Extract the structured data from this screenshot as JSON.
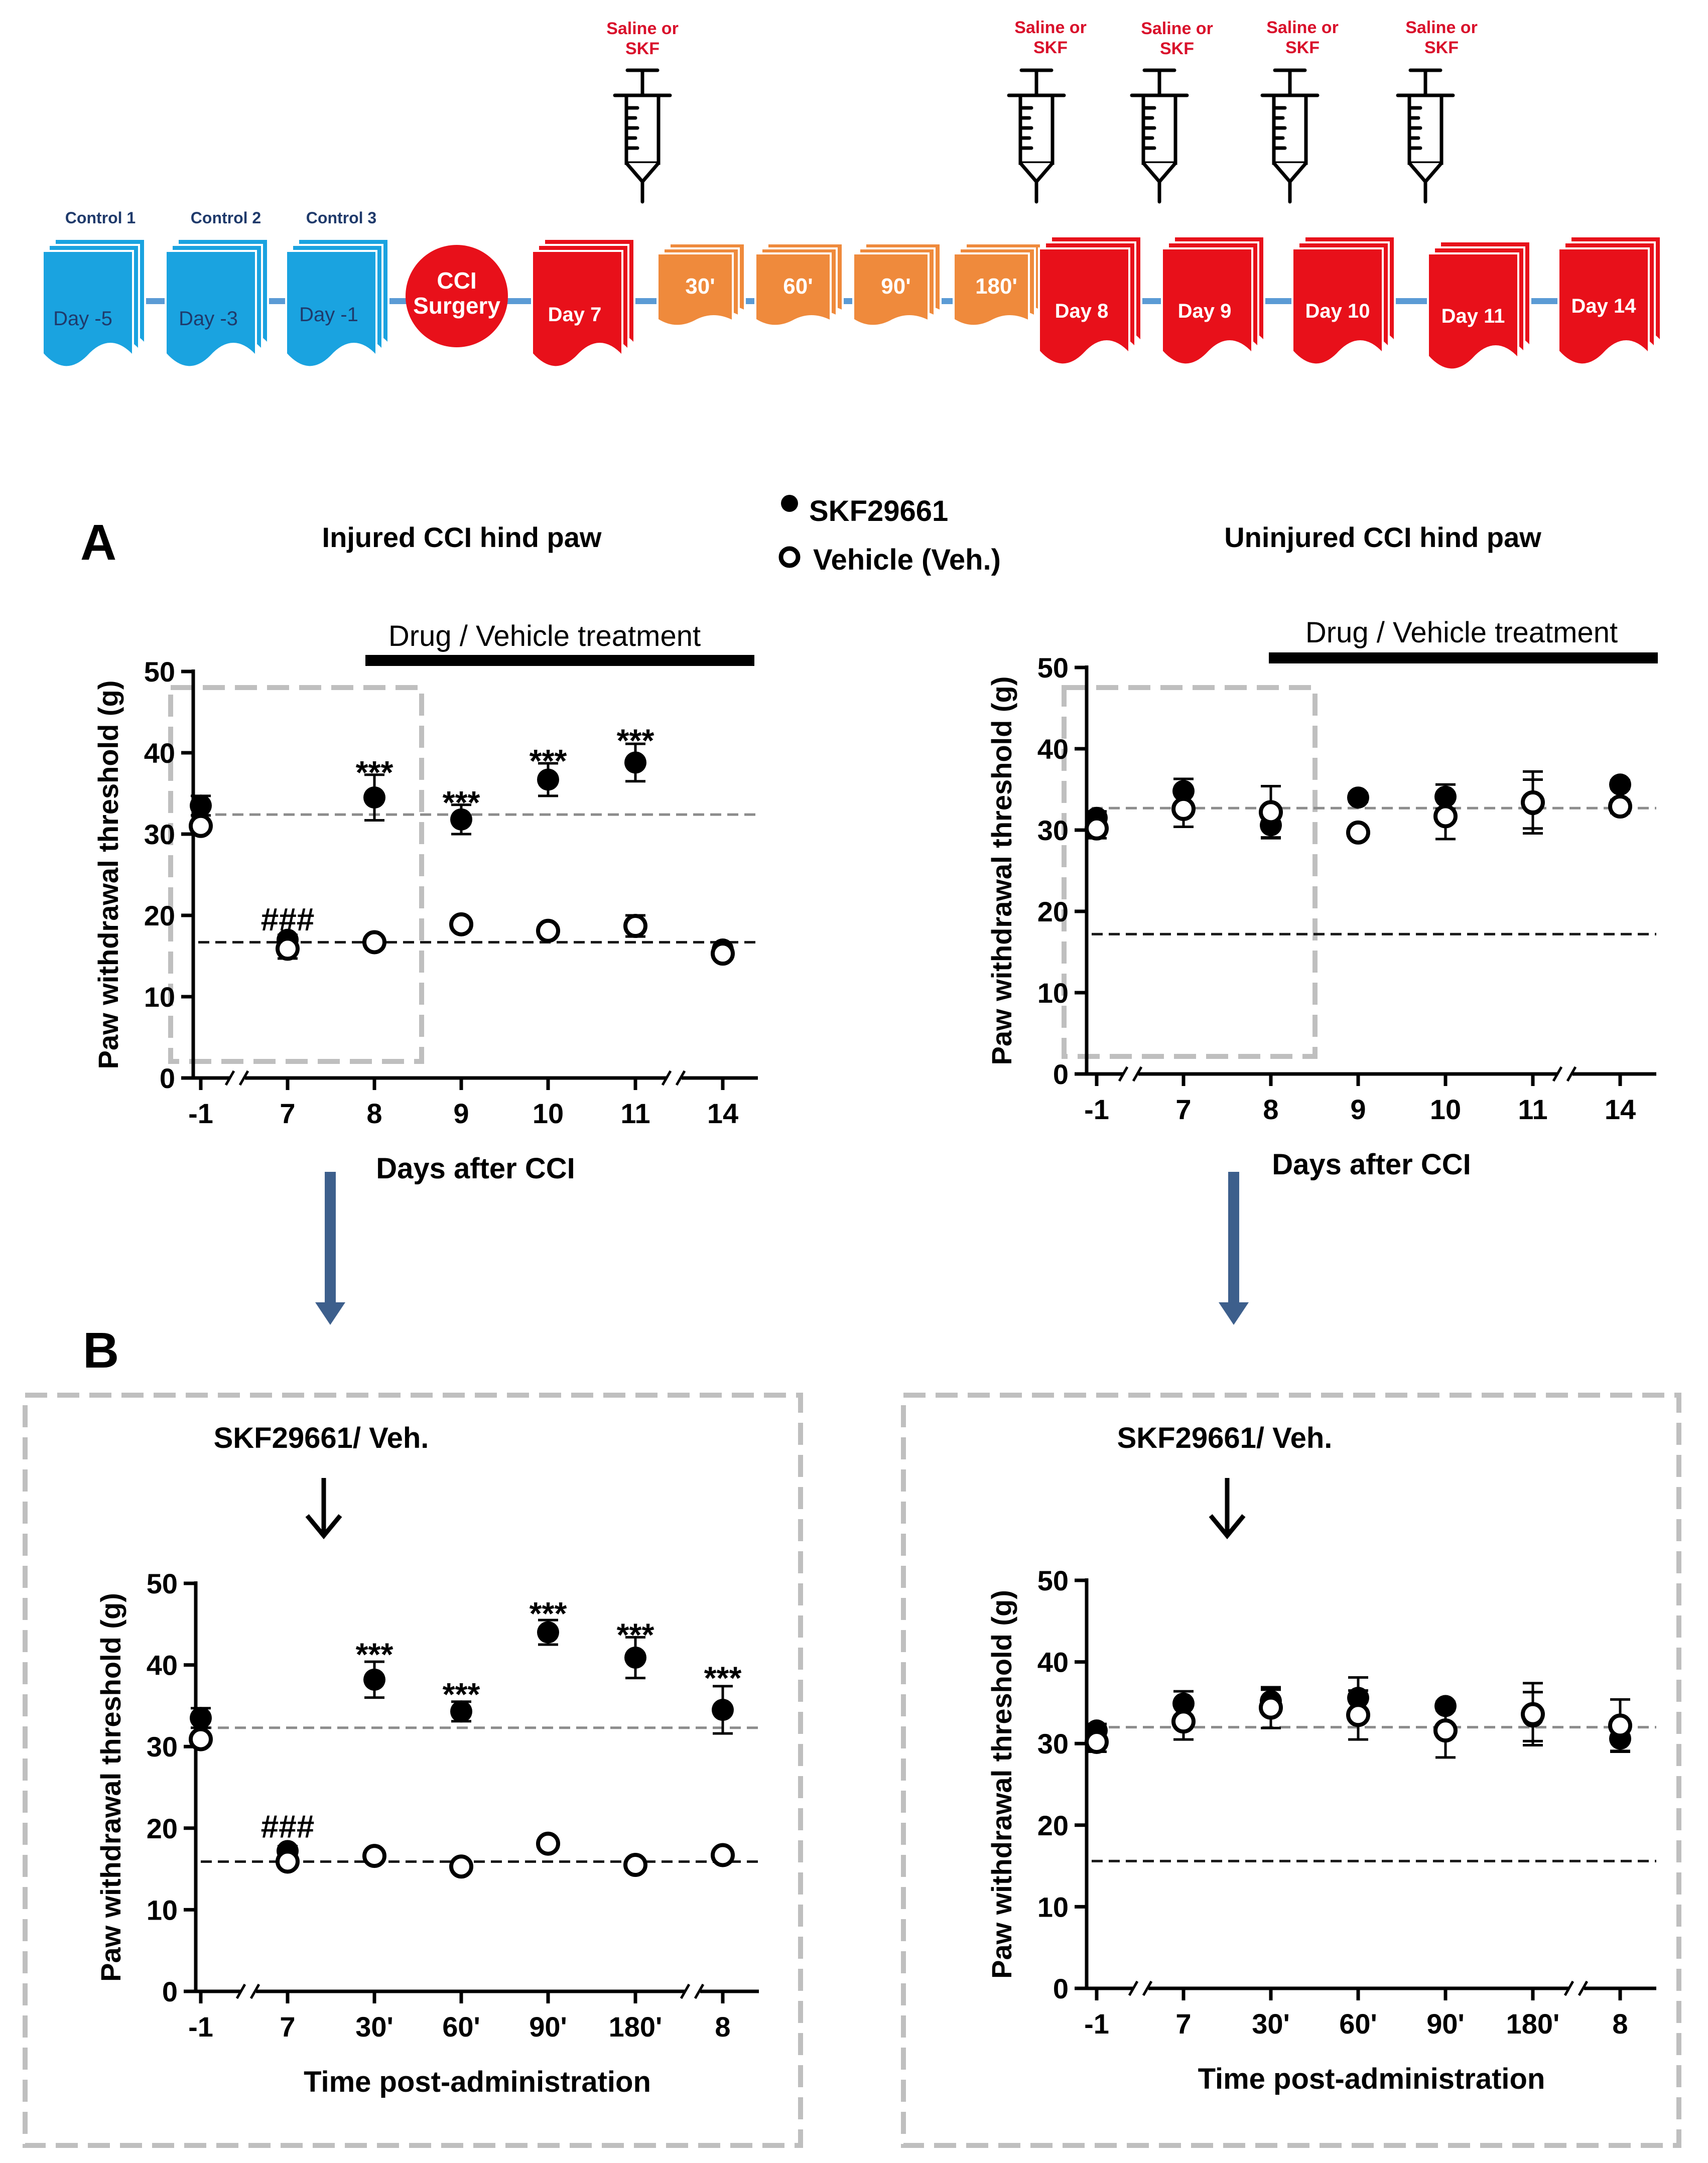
{
  "timeline": {
    "controls": [
      {
        "label": "Control 1",
        "day": "Day -5"
      },
      {
        "label": "Control 2",
        "day": "Day -3"
      },
      {
        "label": "Control 3",
        "day": "Day -1"
      }
    ],
    "surgery": [
      "CCI",
      "Surgery"
    ],
    "day7": "Day 7",
    "timepoints": [
      "30'",
      "60'",
      "90'",
      "180'"
    ],
    "later_days": [
      "Day 8",
      "Day 9",
      "Day 10",
      "Day 11",
      "Day 14"
    ],
    "injection_label": [
      "Saline or",
      "SKF"
    ],
    "colors": {
      "control": "#1aa3e0",
      "surgery": "#e8101a",
      "day": "#e8101a",
      "timepoint": "#ef8a3c",
      "line": "#5b9bd5",
      "injection_text": "#d9102b"
    }
  },
  "legend": {
    "filled": "SKF29661",
    "open": "Vehicle (Veh.)"
  },
  "panel_labels": {
    "a": "A",
    "b": "B"
  },
  "titles": {
    "injured": "Injured CCI hind paw",
    "uninjured": "Uninjured CCI hind paw"
  },
  "treatment_label": "Drug / Vehicle treatment",
  "inset_label": "SKF29661/ Veh.",
  "colors": {
    "arrow": "#3d5f8c",
    "frame": "#bfbfbf",
    "ref_gray": "#8c8c8c",
    "ref_black": "#1a1a1a"
  },
  "chart_data": [
    {
      "id": "A-injured",
      "type": "scatter",
      "title": "Injured CCI hind paw",
      "xlabel": "Days after CCI",
      "ylabel": "Paw withdrawal threshold (g)",
      "ylim": [
        0,
        50
      ],
      "yticks": [
        0,
        10,
        20,
        30,
        40,
        50
      ],
      "categories": [
        "-1",
        "7",
        "8",
        "9",
        "10",
        "11",
        "14"
      ],
      "series": [
        {
          "name": "SKF29661",
          "values": [
            33.5,
            17.0,
            34.5,
            31.8,
            36.7,
            38.8,
            15.8
          ],
          "errors": [
            1.2,
            0.6,
            2.8,
            1.8,
            2.0,
            2.3,
            0.5
          ]
        },
        {
          "name": "Vehicle (Veh.)",
          "values": [
            31.0,
            15.9,
            16.7,
            18.9,
            18.1,
            18.7,
            15.3
          ],
          "errors": [
            0.5,
            1.2,
            0.4,
            0.5,
            0.6,
            1.3,
            0.5
          ]
        }
      ],
      "reference_lines": [
        32.4,
        16.7
      ],
      "annotations": [
        {
          "x": "7",
          "y": 19.5,
          "text": "###"
        },
        {
          "x": "8",
          "y": 37.6,
          "text": "***"
        },
        {
          "x": "9",
          "y": 33.9,
          "text": "***"
        },
        {
          "x": "10",
          "y": 39.0,
          "text": "***"
        },
        {
          "x": "11",
          "y": 41.5,
          "text": "***"
        }
      ],
      "axis_breaks": [
        "after -1",
        "after 11"
      ]
    },
    {
      "id": "A-uninjured",
      "type": "scatter",
      "title": "Uninjured CCI hind paw",
      "xlabel": "Days after CCI",
      "ylabel": "Paw withdrawal threshold (g)",
      "ylim": [
        0,
        50
      ],
      "yticks": [
        0,
        10,
        20,
        30,
        40,
        50
      ],
      "categories": [
        "-1",
        "7",
        "8",
        "9",
        "10",
        "11",
        "14"
      ],
      "series": [
        {
          "name": "SKF29661",
          "values": [
            31.5,
            34.8,
            30.6,
            34.0,
            34.1,
            33.2,
            35.6
          ],
          "errors": [
            0.8,
            1.5,
            1.5,
            0.5,
            1.5,
            3.0,
            0.5
          ]
        },
        {
          "name": "Vehicle (Veh.)",
          "values": [
            30.2,
            32.6,
            32.2,
            29.7,
            31.7,
            33.4,
            32.9
          ],
          "errors": [
            1.2,
            2.2,
            3.2,
            0.5,
            2.8,
            3.8,
            0.8
          ]
        }
      ],
      "reference_lines": [
        32.7,
        17.2
      ],
      "annotations": [],
      "axis_breaks": [
        "after -1",
        "after 11"
      ]
    },
    {
      "id": "B-injured",
      "type": "scatter",
      "xlabel": "Time post-administration",
      "ylabel": "Paw withdrawal threshold (g)",
      "ylim": [
        0,
        50
      ],
      "yticks": [
        0,
        10,
        20,
        30,
        40,
        50
      ],
      "categories": [
        "-1",
        "7",
        "30'",
        "60'",
        "90'",
        "180'",
        "8"
      ],
      "series": [
        {
          "name": "SKF29661",
          "values": [
            33.5,
            17.2,
            38.2,
            34.3,
            44.0,
            40.9,
            34.5
          ],
          "errors": [
            1.2,
            0.6,
            2.2,
            1.2,
            1.5,
            2.5,
            2.9
          ]
        },
        {
          "name": "Vehicle (Veh.)",
          "values": [
            30.9,
            15.9,
            16.6,
            15.3,
            18.1,
            15.5,
            16.7
          ],
          "errors": [
            0.5,
            0.6,
            0.4,
            0.4,
            0.5,
            0.4,
            0.5
          ]
        }
      ],
      "reference_lines": [
        32.3,
        15.9
      ],
      "annotations": [
        {
          "x": "7",
          "y": 20.2,
          "text": "###"
        },
        {
          "x": "30'",
          "y": 41.3,
          "text": "***"
        },
        {
          "x": "60'",
          "y": 36.4,
          "text": "***"
        },
        {
          "x": "90'",
          "y": 46.3,
          "text": "***"
        },
        {
          "x": "180'",
          "y": 43.7,
          "text": "***"
        },
        {
          "x": "8",
          "y": 38.4,
          "text": "***"
        }
      ],
      "axis_breaks": [
        "after -1",
        "after 180'"
      ]
    },
    {
      "id": "B-uninjured",
      "type": "scatter",
      "xlabel": "Time post-administration",
      "ylabel": "Paw withdrawal threshold (g)",
      "ylim": [
        0,
        50
      ],
      "yticks": [
        0,
        10,
        20,
        30,
        40,
        50
      ],
      "categories": [
        "-1",
        "7",
        "30'",
        "60'",
        "90'",
        "180'",
        "8"
      ],
      "series": [
        {
          "name": "SKF29661",
          "values": [
            31.6,
            34.9,
            35.2,
            35.6,
            34.6,
            33.3,
            30.6
          ],
          "errors": [
            0.8,
            1.5,
            1.4,
            2.5,
            0.5,
            3.0,
            1.5
          ]
        },
        {
          "name": "Vehicle (Veh.)",
          "values": [
            30.2,
            32.7,
            34.4,
            33.5,
            31.6,
            33.6,
            32.2
          ],
          "errors": [
            1.2,
            2.2,
            2.5,
            3.0,
            3.3,
            3.8,
            3.2
          ]
        }
      ],
      "reference_lines": [
        32.0,
        15.6
      ],
      "annotations": [],
      "axis_breaks": [
        "after -1",
        "after 180'"
      ]
    }
  ]
}
